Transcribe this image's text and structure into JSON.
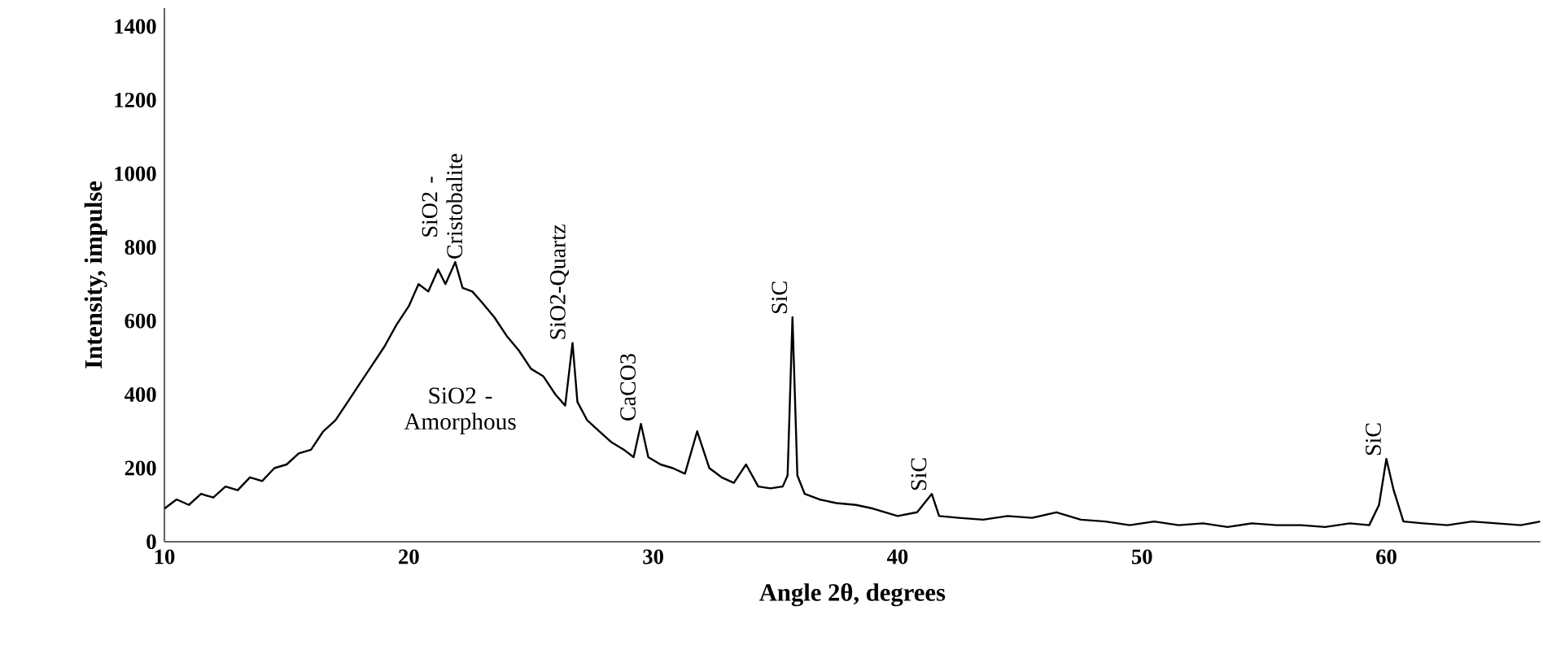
{
  "chart_data": {
    "type": "line",
    "xlabel": "Angle 2θ, degrees",
    "ylabel": "Intensity, impulse",
    "xlim": [
      10,
      66.3
    ],
    "ylim": [
      0,
      1450
    ],
    "xticks": [
      10,
      20,
      30,
      40,
      50,
      60
    ],
    "yticks": [
      0,
      200,
      400,
      600,
      800,
      1000,
      1200,
      1400
    ],
    "grid": false,
    "marker": "none",
    "line_style": "solid",
    "series": [
      {
        "color": "#000000",
        "x": [
          10,
          10.5,
          11,
          11.5,
          12,
          12.5,
          13,
          13.5,
          14,
          14.5,
          15,
          15.5,
          16,
          16.5,
          17,
          17.5,
          18,
          18.5,
          19,
          19.5,
          20,
          20.4,
          20.8,
          21.2,
          21.5,
          21.9,
          22.2,
          22.6,
          23,
          23.5,
          24,
          24.5,
          25,
          25.5,
          26,
          26.4,
          26.7,
          26.9,
          27.3,
          27.8,
          28.3,
          28.8,
          29.2,
          29.5,
          29.8,
          30.3,
          30.8,
          31.3,
          31.8,
          32.3,
          32.8,
          33.3,
          33.8,
          34.3,
          34.8,
          35.3,
          35.5,
          35.7,
          35.9,
          36.2,
          36.8,
          37.5,
          38.3,
          39,
          40,
          40.8,
          41.4,
          41.7,
          42.5,
          43.5,
          44.5,
          45.5,
          46.5,
          47.5,
          48.5,
          49.5,
          50.5,
          51.5,
          52.5,
          53.5,
          54.5,
          55.5,
          56.5,
          57.5,
          58.5,
          59.3,
          59.7,
          60,
          60.3,
          60.7,
          61.5,
          62.5,
          63.5,
          64.5,
          65.5,
          66.3
        ],
        "values": [
          90,
          115,
          100,
          130,
          120,
          150,
          140,
          175,
          165,
          200,
          210,
          240,
          250,
          300,
          330,
          380,
          430,
          480,
          530,
          590,
          640,
          700,
          680,
          740,
          700,
          760,
          690,
          680,
          650,
          610,
          560,
          520,
          470,
          450,
          400,
          370,
          540,
          380,
          330,
          300,
          270,
          250,
          230,
          320,
          230,
          210,
          200,
          185,
          300,
          200,
          175,
          160,
          210,
          150,
          145,
          150,
          180,
          610,
          180,
          130,
          115,
          105,
          100,
          90,
          70,
          80,
          130,
          70,
          65,
          60,
          70,
          65,
          80,
          60,
          55,
          45,
          55,
          45,
          50,
          40,
          50,
          45,
          45,
          40,
          50,
          45,
          100,
          225,
          140,
          55,
          50,
          45,
          55,
          50,
          45,
          55
        ]
      }
    ],
    "annotations": [
      {
        "text": "SiO2 - Cristobalite",
        "x": 21.9,
        "y": 760
      },
      "SiO2 - Amorphous",
      {
        "text": "SiO2-Quartz",
        "x": 26.7,
        "y": 540
      },
      {
        "text": "CaCO3",
        "x": 29.5,
        "y": 320
      },
      {
        "text": "SiC",
        "x": 35.7,
        "y": 610
      },
      {
        "text": "SiC",
        "x": 41.4,
        "y": 130
      },
      {
        "text": "SiC",
        "x": 60,
        "y": 225
      }
    ]
  }
}
